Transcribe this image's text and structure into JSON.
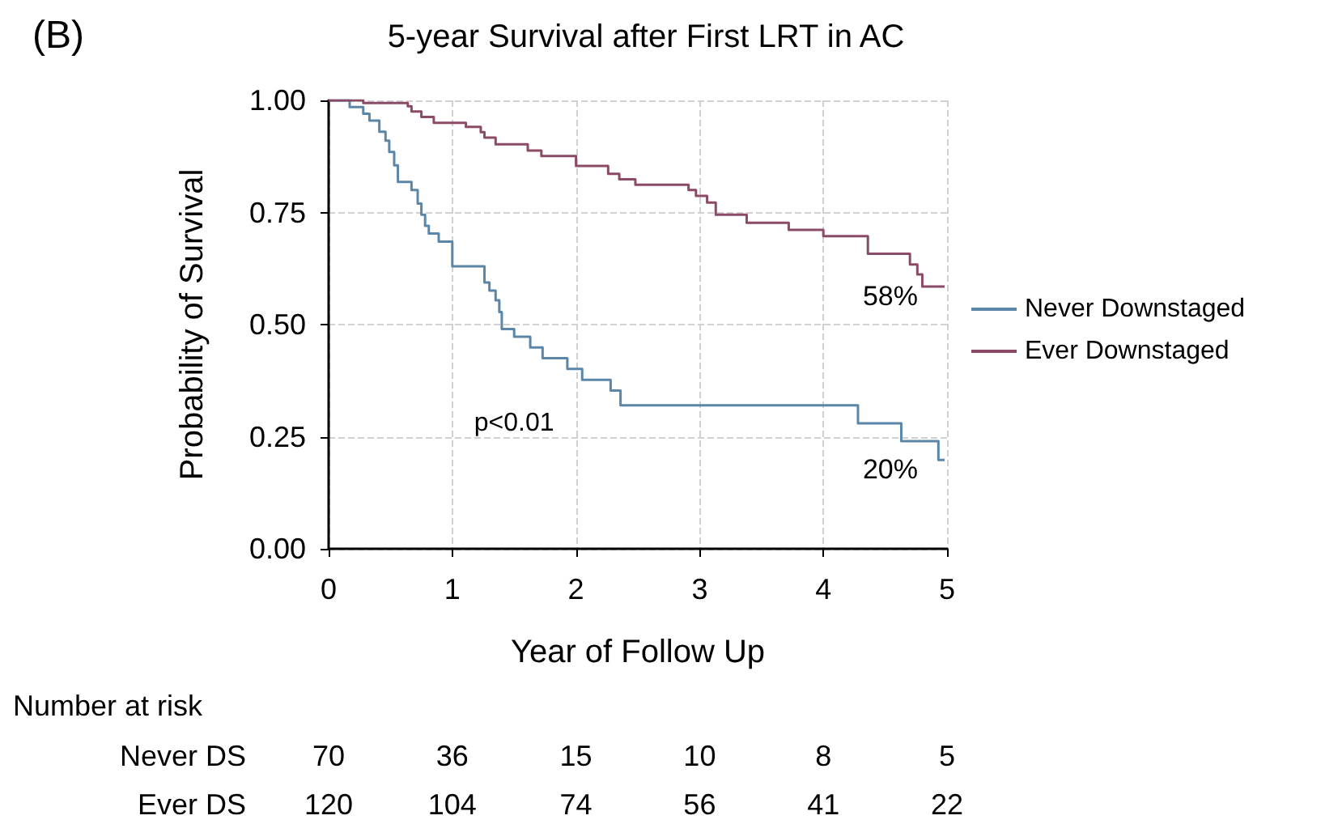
{
  "chart_data": {
    "type": "step",
    "title": "5-year Survival after First LRT in AC",
    "xlabel": "Year of Follow Up",
    "ylabel": "Probability of Survival",
    "series": [
      {
        "name": "Never Downstaged",
        "color": "#5b86a8",
        "x": [
          0,
          0.17,
          0.28,
          0.33,
          0.41,
          0.46,
          0.49,
          0.53,
          0.56,
          0.67,
          0.72,
          0.75,
          0.78,
          0.81,
          0.89,
          1.0,
          1.24,
          1.26,
          1.3,
          1.35,
          1.38,
          1.4,
          1.5,
          1.63,
          1.73,
          1.93,
          2.05,
          2.28,
          2.36,
          4.28,
          4.63,
          4.93,
          4.98
        ],
        "values": [
          1.0,
          0.985,
          0.97,
          0.955,
          0.93,
          0.91,
          0.885,
          0.855,
          0.818,
          0.8,
          0.77,
          0.745,
          0.72,
          0.703,
          0.685,
          0.63,
          0.63,
          0.594,
          0.576,
          0.554,
          0.528,
          0.49,
          0.473,
          0.449,
          0.425,
          0.401,
          0.377,
          0.353,
          0.32,
          0.28,
          0.24,
          0.198,
          0.198
        ]
      },
      {
        "name": "Ever Downstaged",
        "color": "#8b4a66",
        "x": [
          0,
          0.28,
          0.64,
          0.67,
          0.75,
          0.85,
          1.11,
          1.23,
          1.26,
          1.35,
          1.61,
          1.72,
          2.0,
          2.26,
          2.35,
          2.48,
          2.91,
          2.97,
          3.06,
          3.13,
          3.2,
          3.38,
          3.72,
          4.0,
          4.36,
          4.7,
          4.76,
          4.8,
          4.98
        ],
        "values": [
          1.0,
          0.994,
          0.987,
          0.975,
          0.963,
          0.95,
          0.941,
          0.929,
          0.917,
          0.902,
          0.888,
          0.876,
          0.854,
          0.836,
          0.824,
          0.812,
          0.8,
          0.787,
          0.772,
          0.745,
          0.745,
          0.727,
          0.711,
          0.697,
          0.658,
          0.634,
          0.612,
          0.585,
          0.585
        ]
      }
    ],
    "xlim": [
      0,
      5
    ],
    "xticks": [
      0,
      1,
      2,
      3,
      4,
      5
    ],
    "ylim": [
      0,
      1
    ],
    "yticks": [
      {
        "value": 0,
        "label": "0.00"
      },
      {
        "value": 0.25,
        "label": "0.25"
      },
      {
        "value": 0.5,
        "label": "0.50"
      },
      {
        "value": 0.75,
        "label": "0.75"
      },
      {
        "value": 1,
        "label": "1.00"
      }
    ],
    "grid": true,
    "legend": "right",
    "line_style": "solid",
    "marker": "none",
    "annotations": [
      "(B)",
      "p<0.01",
      {
        "text": "58%",
        "x": 5,
        "y": 0.585
      },
      {
        "text": "20%",
        "x": 5,
        "y": 0.198
      },
      "Number at risk",
      "Never DS",
      "70",
      "36",
      "15",
      "10",
      "8",
      "5",
      "Ever DS",
      "120",
      "104",
      "74",
      "56",
      "41",
      "22"
    ]
  }
}
